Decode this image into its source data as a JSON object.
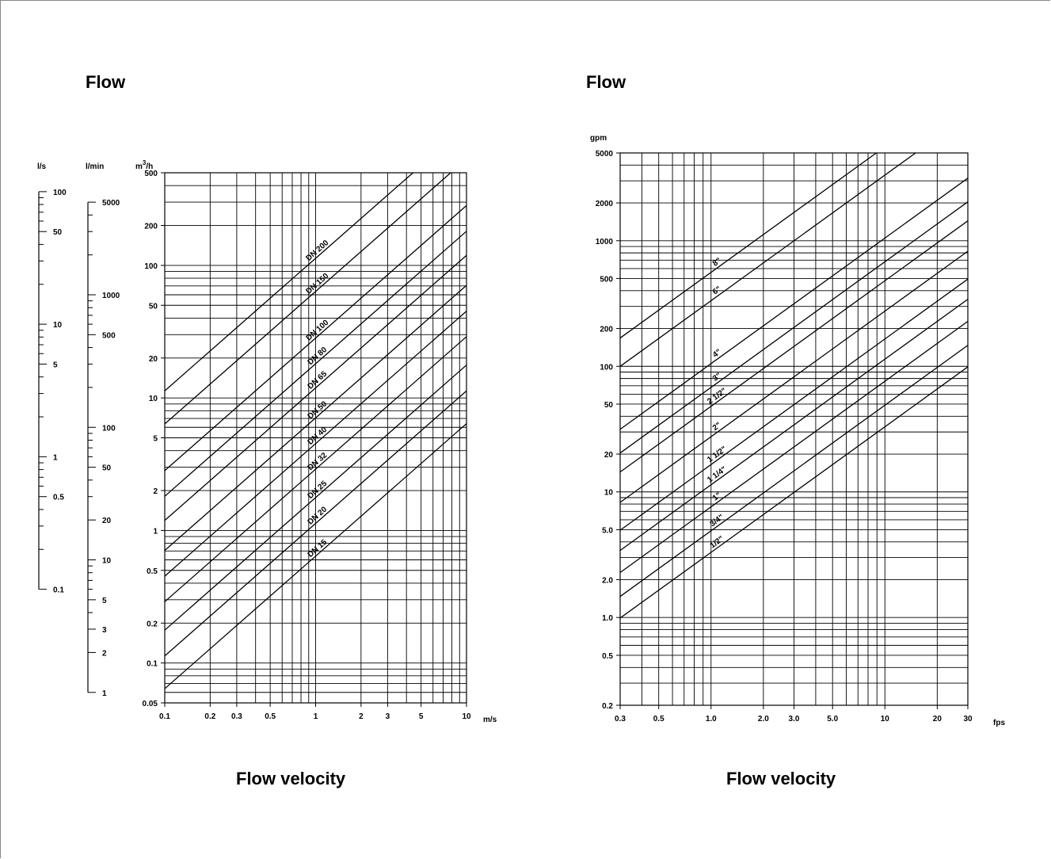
{
  "titles": {
    "left_flow": "Flow",
    "left_velocity": "Flow velocity",
    "right_flow": "Flow",
    "right_velocity": "Flow velocity"
  },
  "chart_data": [
    {
      "type": "line",
      "scale": "log-log",
      "x_unit": "m/s",
      "y_unit": "m3/h",
      "xlim": [
        0.1,
        10
      ],
      "ylim": [
        0.05,
        500
      ],
      "x_ticks": [
        {
          "v": 0.1,
          "label": "0.1"
        },
        {
          "v": 0.2,
          "label": "0.2"
        },
        {
          "v": 0.3,
          "label": "0.3"
        },
        {
          "v": 0.5,
          "label": "0.5"
        },
        {
          "v": 1,
          "label": "1"
        },
        {
          "v": 2,
          "label": "2"
        },
        {
          "v": 3,
          "label": "3"
        },
        {
          "v": 5,
          "label": "5"
        },
        {
          "v": 10,
          "label": "10"
        }
      ],
      "y_ticks": [
        {
          "v": 0.05,
          "label": "0.05"
        },
        {
          "v": 0.1,
          "label": "0.1"
        },
        {
          "v": 0.2,
          "label": "0.2"
        },
        {
          "v": 0.5,
          "label": "0.5"
        },
        {
          "v": 1,
          "label": "1"
        },
        {
          "v": 2,
          "label": "2"
        },
        {
          "v": 5,
          "label": "5"
        },
        {
          "v": 10,
          "label": "10"
        },
        {
          "v": 20,
          "label": "20"
        },
        {
          "v": 50,
          "label": "50"
        },
        {
          "v": 100,
          "label": "100"
        },
        {
          "v": 200,
          "label": "200"
        },
        {
          "v": 500,
          "label": "500"
        }
      ],
      "grid": true,
      "series": [
        {
          "name": "DN 200",
          "q_at_1ms": 113.1
        },
        {
          "name": "DN 150",
          "q_at_1ms": 63.6
        },
        {
          "name": "DN 100",
          "q_at_1ms": 28.3
        },
        {
          "name": "DN 80",
          "q_at_1ms": 18.1
        },
        {
          "name": "DN 65",
          "q_at_1ms": 11.9
        },
        {
          "name": "DN 50",
          "q_at_1ms": 7.07
        },
        {
          "name": "DN 40",
          "q_at_1ms": 4.52
        },
        {
          "name": "DN 32",
          "q_at_1ms": 2.9
        },
        {
          "name": "DN 25",
          "q_at_1ms": 1.77
        },
        {
          "name": "DN 20",
          "q_at_1ms": 1.13
        },
        {
          "name": "DN 15",
          "q_at_1ms": 0.64
        }
      ],
      "side_scales": [
        {
          "unit": "l/s",
          "factor": 0.2778,
          "range": [
            0.1,
            100
          ],
          "labels": [
            {
              "v": 100,
              "label": "100"
            },
            {
              "v": 50,
              "label": "50"
            },
            {
              "v": 10,
              "label": "10"
            },
            {
              "v": 5,
              "label": "5"
            },
            {
              "v": 1,
              "label": "1"
            },
            {
              "v": 0.5,
              "label": "0.5"
            },
            {
              "v": 0.1,
              "label": "0.1"
            }
          ]
        },
        {
          "unit": "l/min",
          "factor": 16.667,
          "range": [
            1,
            5000
          ],
          "labels": [
            {
              "v": 5000,
              "label": "5000"
            },
            {
              "v": 1000,
              "label": "1000"
            },
            {
              "v": 500,
              "label": "500"
            },
            {
              "v": 100,
              "label": "100"
            },
            {
              "v": 50,
              "label": "50"
            },
            {
              "v": 20,
              "label": "20"
            },
            {
              "v": 10,
              "label": "10"
            },
            {
              "v": 5,
              "label": "5"
            },
            {
              "v": 3,
              "label": "3"
            },
            {
              "v": 2,
              "label": "2"
            },
            {
              "v": 1,
              "label": "1"
            }
          ]
        }
      ]
    },
    {
      "type": "line",
      "scale": "log-log",
      "x_unit": "fps",
      "y_unit": "gpm",
      "xlim": [
        0.3,
        30
      ],
      "ylim": [
        0.2,
        5000
      ],
      "x_ticks": [
        {
          "v": 0.3,
          "label": "0.3"
        },
        {
          "v": 0.5,
          "label": "0.5"
        },
        {
          "v": 1,
          "label": "1.0"
        },
        {
          "v": 2,
          "label": "2.0"
        },
        {
          "v": 3,
          "label": "3.0"
        },
        {
          "v": 5,
          "label": "5.0"
        },
        {
          "v": 10,
          "label": "10"
        },
        {
          "v": 20,
          "label": "20"
        },
        {
          "v": 30,
          "label": "30"
        }
      ],
      "y_ticks": [
        {
          "v": 0.2,
          "label": "0.2"
        },
        {
          "v": 0.5,
          "label": "0.5"
        },
        {
          "v": 1,
          "label": "1.0"
        },
        {
          "v": 2,
          "label": "2.0"
        },
        {
          "v": 5,
          "label": "5.0"
        },
        {
          "v": 10,
          "label": "10"
        },
        {
          "v": 20,
          "label": "20"
        },
        {
          "v": 50,
          "label": "50"
        },
        {
          "v": 100,
          "label": "100"
        },
        {
          "v": 200,
          "label": "200"
        },
        {
          "v": 500,
          "label": "500"
        },
        {
          "v": 1000,
          "label": "1000"
        },
        {
          "v": 2000,
          "label": "2000"
        },
        {
          "v": 5000,
          "label": "5000"
        }
      ],
      "grid": true,
      "series": [
        {
          "name": "8\"",
          "q_at_1fps": 560
        },
        {
          "name": "6\"",
          "q_at_1fps": 333
        },
        {
          "name": "4\"",
          "q_at_1fps": 105
        },
        {
          "name": "3\"",
          "q_at_1fps": 68
        },
        {
          "name": "2 1/2\"",
          "q_at_1fps": 48
        },
        {
          "name": "2\"",
          "q_at_1fps": 27.5
        },
        {
          "name": "1 1/2\"",
          "q_at_1fps": 16.5
        },
        {
          "name": "1 1/4\"",
          "q_at_1fps": 11.4
        },
        {
          "name": "1\"",
          "q_at_1fps": 7.6
        },
        {
          "name": "3/4\"",
          "q_at_1fps": 4.9
        },
        {
          "name": "1/2\"",
          "q_at_1fps": 3.3
        }
      ]
    }
  ]
}
